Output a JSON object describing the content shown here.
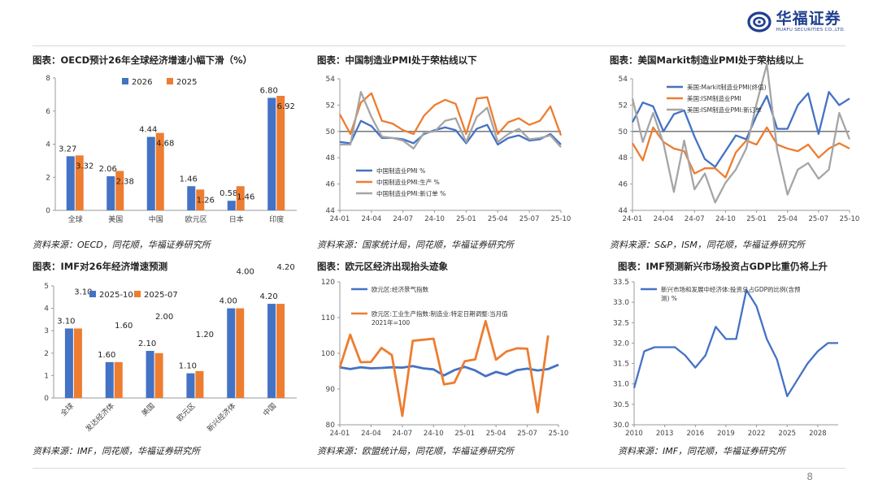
{
  "header": {
    "brand_cn": "华福证券",
    "brand_en": "HUAFU SECURITIES CO.,LTD.",
    "page_number": "8"
  },
  "chart_data": [
    {
      "id": "c1",
      "type": "bar",
      "title": "图表：OECD预计26年全球经济增速小幅下滑（%）",
      "source": "资料来源：OECD，同花顺，华福证券研究所",
      "categories": [
        "全球",
        "美国",
        "中国",
        "欧元区",
        "日本",
        "印度"
      ],
      "series": [
        {
          "name": "2026",
          "color": "#4472c4",
          "values": [
            3.27,
            2.06,
            4.44,
            1.46,
            0.58,
            6.8
          ],
          "labels": [
            "3.27",
            "2.06",
            "4.44",
            "1.46",
            "0.58",
            "6.80"
          ]
        },
        {
          "name": "2025",
          "color": "#ed7d31",
          "values": [
            3.32,
            2.38,
            4.68,
            1.26,
            1.46,
            6.92
          ],
          "labels": [
            "3.32",
            "2.38",
            "4.68",
            "1.26",
            "1.46",
            "6.92"
          ]
        }
      ],
      "ylim": [
        0,
        8
      ],
      "yticks": [
        "0",
        "2",
        "4",
        "6",
        "8"
      ]
    },
    {
      "id": "c2",
      "type": "line",
      "title": "图表：中国制造业PMI处于荣枯线以下",
      "source": "资料来源：国家统计局，同花顺，华福证券研究所",
      "xticks": [
        "24-01",
        "24-04",
        "24-07",
        "24-10",
        "25-01",
        "25-04",
        "25-07",
        "25-10"
      ],
      "ylim": [
        44,
        54
      ],
      "yticks": [
        "44",
        "46",
        "48",
        "50",
        "52",
        "54"
      ],
      "reference_line": 50,
      "series": [
        {
          "name": "中国制造业PMI %",
          "color": "#4472c4",
          "values": [
            49.2,
            49.1,
            50.8,
            50.4,
            49.5,
            49.5,
            49.4,
            49.1,
            49.8,
            50.1,
            50.3,
            50.1,
            49.1,
            50.2,
            50.5,
            49.0,
            49.5,
            49.7,
            49.3,
            49.4,
            49.8,
            49.0
          ]
        },
        {
          "name": "中国制造业PMI:生产 %",
          "color": "#ed7d31",
          "values": [
            51.3,
            49.8,
            52.2,
            52.9,
            50.8,
            50.6,
            50.1,
            49.8,
            51.2,
            52.0,
            52.4,
            52.1,
            49.8,
            52.5,
            52.6,
            49.8,
            50.7,
            51.0,
            50.5,
            50.8,
            51.9,
            49.7
          ]
        },
        {
          "name": "中国制造业PMI:新订单 %",
          "color": "#a5a5a5",
          "values": [
            49.0,
            49.0,
            53.0,
            51.1,
            49.6,
            49.5,
            49.3,
            48.7,
            49.9,
            50.0,
            50.8,
            51.0,
            49.2,
            51.1,
            51.8,
            49.2,
            49.8,
            50.2,
            49.4,
            49.5,
            49.7,
            48.8
          ]
        }
      ]
    },
    {
      "id": "c3",
      "type": "line",
      "title": "图表：美国Markit制造业PMI处于荣枯线以上",
      "source": "资料来源：S&P，ISM，同花顺，华福证券研究所",
      "xticks": [
        "24-01",
        "24-04",
        "24-07",
        "24-10",
        "25-01",
        "25-04",
        "25-07",
        "25-10"
      ],
      "ylim": [
        44,
        54
      ],
      "yticks": [
        "44",
        "46",
        "48",
        "50",
        "52",
        "54"
      ],
      "reference_line": 50,
      "series": [
        {
          "name": "美国:Markit制造业PMI(终值)",
          "color": "#4472c4",
          "values": [
            50.7,
            52.2,
            51.9,
            50.0,
            51.3,
            51.6,
            49.6,
            47.9,
            47.3,
            48.5,
            49.7,
            49.4,
            51.2,
            52.7,
            50.2,
            50.2,
            52.0,
            52.9,
            49.8,
            53.0,
            52.0,
            52.5
          ]
        },
        {
          "name": "美国:ISM制造业PMI",
          "color": "#ed7d31",
          "values": [
            49.1,
            47.8,
            50.3,
            49.2,
            48.7,
            48.5,
            46.8,
            47.2,
            47.2,
            46.5,
            48.4,
            49.3,
            49.0,
            50.3,
            49.0,
            48.7,
            48.5,
            49.0,
            48.0,
            48.7,
            49.1,
            48.7
          ]
        },
        {
          "name": "美国:ISM制造业PMI:新订单",
          "color": "#a5a5a5",
          "values": [
            52.5,
            49.2,
            51.4,
            49.1,
            45.4,
            49.3,
            45.6,
            46.8,
            44.6,
            46.1,
            47.1,
            48.7,
            52.1,
            55.1,
            48.6,
            45.2,
            47.1,
            47.6,
            46.4,
            47.1,
            51.4,
            49.4
          ]
        }
      ]
    },
    {
      "id": "c4",
      "type": "bar",
      "title": "图表：IMF对26年经济增速预测",
      "source": "资料来源：IMF，同花顺，华福证券研究所",
      "categories": [
        "全球",
        "发达经济体",
        "美国",
        "欧元区",
        "新兴经济体",
        "中国"
      ],
      "series": [
        {
          "name": "2025-10",
          "color": "#4472c4",
          "values": [
            3.1,
            1.6,
            2.1,
            1.1,
            4.0,
            4.2
          ],
          "labels": [
            "3.10",
            "1.60",
            "2.10",
            "1.10",
            "4.00",
            "4.20"
          ]
        },
        {
          "name": "2025-07",
          "color": "#ed7d31",
          "values": [
            3.1,
            1.6,
            2.0,
            1.2,
            4.0,
            4.2
          ],
          "labels": [
            "3.10",
            "1.60",
            "2.00",
            "1.20",
            "4.00",
            "4.20"
          ]
        }
      ],
      "ylim": [
        0,
        5
      ],
      "yticks": [
        "0",
        "1",
        "2",
        "3",
        "4",
        "5"
      ]
    },
    {
      "id": "c5",
      "type": "line",
      "title": "图表：欧元区经济出现抬头迹象",
      "source": "资料来源：欧盟统计局，同花顺，华福证券研究所",
      "xticks": [
        "24-01",
        "24-04",
        "24-07",
        "24-10",
        "25-01",
        "25-04",
        "25-07",
        "25-10"
      ],
      "ylim": [
        80,
        120
      ],
      "yticks": [
        "80",
        "90",
        "100",
        "110",
        "120"
      ],
      "series": [
        {
          "name": "欧元区:经济景气指数",
          "color": "#4472c4",
          "values": [
            96.1,
            95.6,
            96.1,
            95.8,
            95.9,
            96.1,
            96.0,
            96.4,
            95.8,
            95.5,
            93.8,
            95.3,
            96.2,
            95.2,
            93.6,
            94.8,
            94.0,
            95.3,
            95.7,
            95.2,
            95.6,
            96.8
          ]
        },
        {
          "name": "欧元区:工业生产指数:制造业:特定日期调整:当月值 2021年=100",
          "color": "#ed7d31",
          "values": [
            96.0,
            105.2,
            97.5,
            97.6,
            101.5,
            99.5,
            82.5,
            103.5,
            103.8,
            104.1,
            91.3,
            91.8,
            97.8,
            98.3,
            109.0,
            98.2,
            100.5,
            101.4,
            101.3,
            83.5,
            105.0
          ]
        }
      ]
    },
    {
      "id": "c6",
      "type": "line",
      "title": "图表：IMF预测新兴市场投资占GDP比重仍将上升",
      "source": "资料来源：IMF，同花顺，华福证券研究所",
      "x_start": 2010,
      "x_end": 2030,
      "xticks": [
        "2010",
        "2013",
        "2016",
        "2019",
        "2022",
        "2025",
        "2028"
      ],
      "ylim": [
        30.0,
        33.5
      ],
      "yticks": [
        "30.0",
        "30.5",
        "31.0",
        "31.5",
        "32.0",
        "32.5",
        "33.0",
        "33.5"
      ],
      "series": [
        {
          "name": "新兴市场和发展中经济体:投资总占GDP的比例(含预测) %",
          "color": "#4472c4",
          "values": [
            30.9,
            31.8,
            31.9,
            31.9,
            31.9,
            31.7,
            31.4,
            31.7,
            32.4,
            32.1,
            32.1,
            33.3,
            32.9,
            32.1,
            31.6,
            30.7,
            31.1,
            31.5,
            31.8,
            32.0,
            32.0
          ]
        }
      ]
    }
  ]
}
